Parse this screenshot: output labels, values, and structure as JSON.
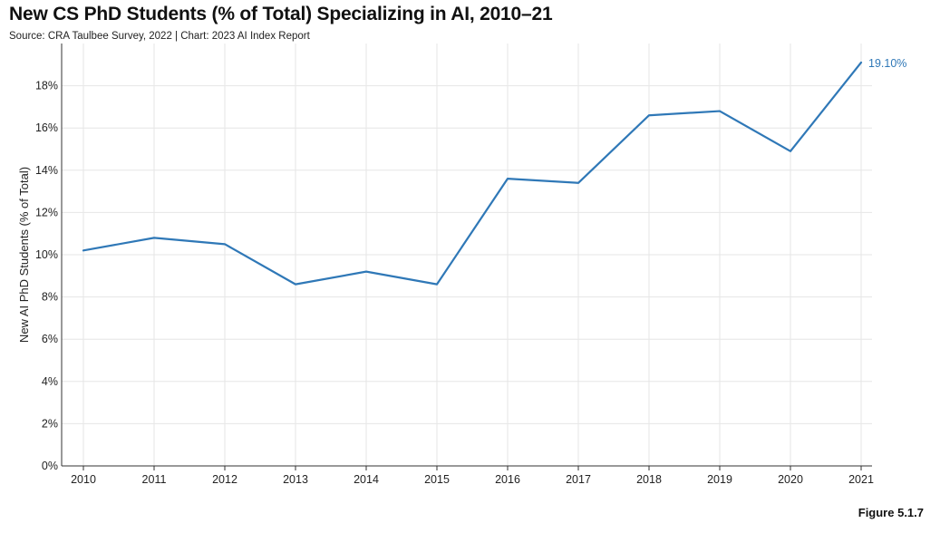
{
  "title": "New CS PhD Students (% of Total) Specializing in AI, 2010–21",
  "source": "Source: CRA Taulbee Survey, 2022 | Chart: 2023 AI Index Report",
  "figure_label": "Figure 5.1.7",
  "colors": {
    "line": "#2f78b7",
    "grid": "#e6e6e6",
    "axis": "#333333"
  },
  "chart_data": {
    "type": "line",
    "title": "New CS PhD Students (% of Total) Specializing in AI, 2010–21",
    "xlabel": "",
    "ylabel": "New AI PhD Students (% of Total)",
    "x": [
      "2010",
      "2011",
      "2012",
      "2013",
      "2014",
      "2015",
      "2016",
      "2017",
      "2018",
      "2019",
      "2020",
      "2021"
    ],
    "series": [
      {
        "name": "New AI PhD Students (% of Total)",
        "values": [
          10.2,
          10.8,
          10.5,
          8.6,
          9.2,
          8.6,
          13.6,
          13.4,
          16.6,
          16.8,
          14.9,
          19.1
        ]
      }
    ],
    "ylim": [
      0,
      20
    ],
    "yticks": [
      0,
      2,
      4,
      6,
      8,
      10,
      12,
      14,
      16,
      18
    ],
    "ytick_labels": [
      "0%",
      "2%",
      "4%",
      "6%",
      "8%",
      "10%",
      "12%",
      "14%",
      "16%",
      "18%"
    ],
    "annotations": [
      {
        "x": "2021",
        "text": "19.10%"
      }
    ],
    "grid": true,
    "legend": "none"
  }
}
